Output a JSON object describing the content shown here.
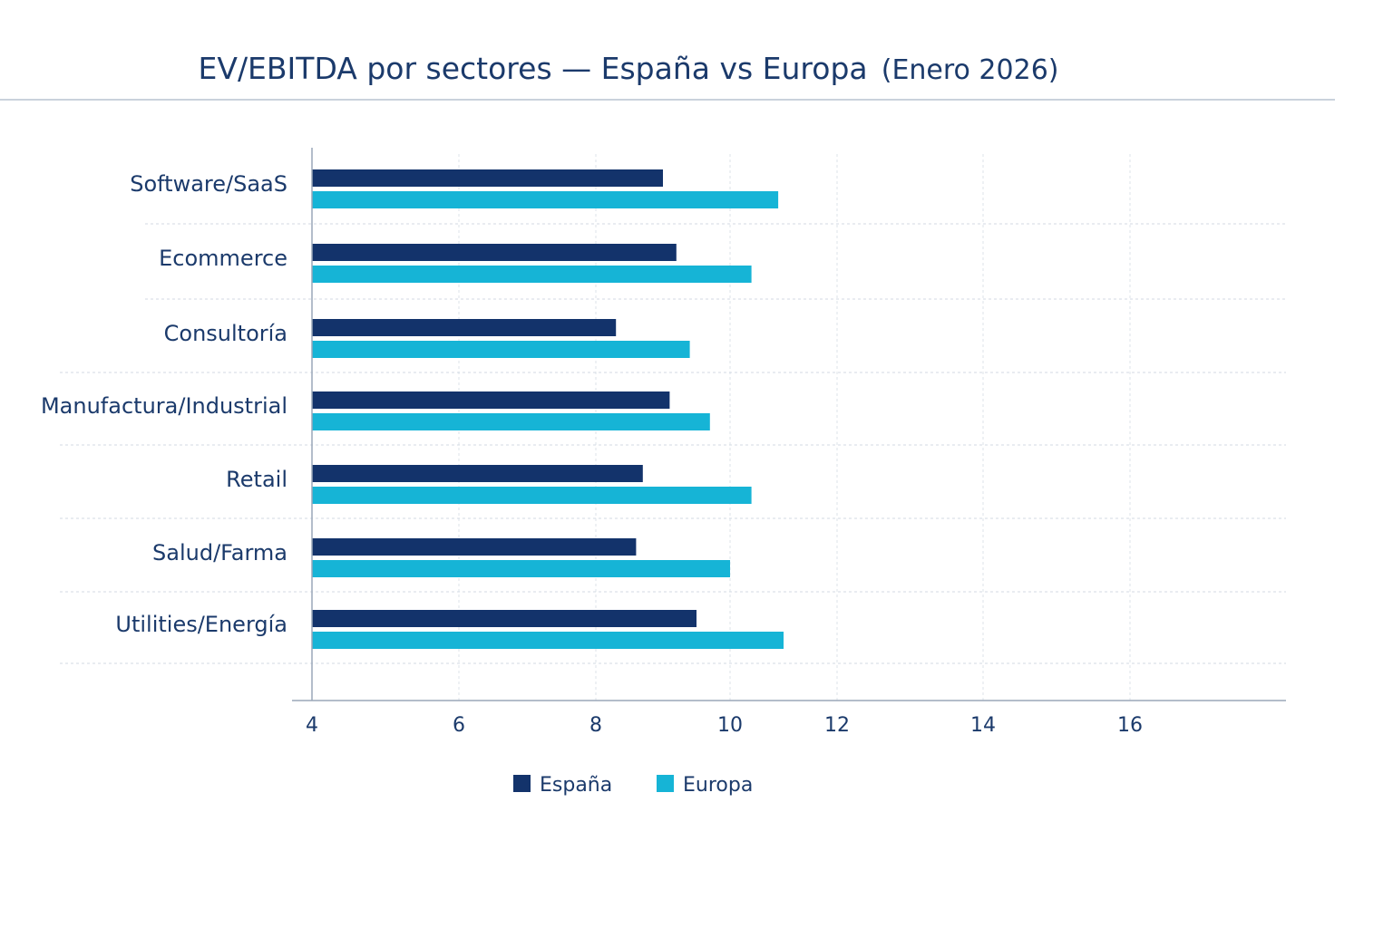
{
  "chart_data": {
    "type": "bar",
    "orientation": "horizontal",
    "title": "EV/EBITDA por sectores — España vs Europa",
    "subtitle": "(Enero 2026)",
    "categories": [
      "Software/SaaS",
      "Ecommerce",
      "Consultoría",
      "Manufactura/Industrial",
      "Retail",
      "Salud/Farma",
      "Utilities/Energía"
    ],
    "series": [
      {
        "name": "España",
        "color": "#13336b",
        "values": [
          9.0,
          9.2,
          8.3,
          9.1,
          8.7,
          8.6,
          9.5
        ]
      },
      {
        "name": "Europa",
        "color": "#16b4d6",
        "values": [
          10.9,
          10.4,
          9.4,
          9.7,
          10.4,
          10.0,
          11.0
        ]
      }
    ],
    "x_ticks": [
      4,
      6,
      8,
      10,
      12,
      14,
      16
    ],
    "xlim": [
      4,
      17.5
    ],
    "xlabel": "",
    "ylabel": "",
    "grid": true,
    "legend_position": "bottom"
  }
}
